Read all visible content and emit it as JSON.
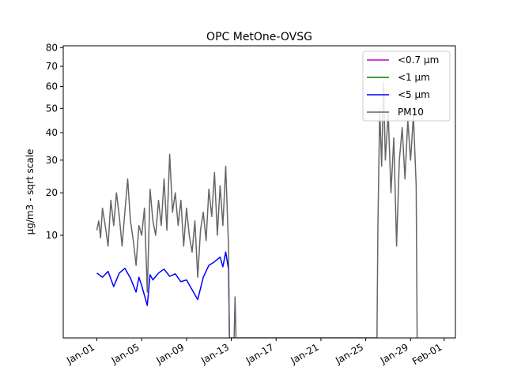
{
  "chart_data": {
    "type": "line",
    "title": "OPC MetOne-OVSG",
    "ylabel": "µg/m3 - sqrt scale",
    "xlabel": "",
    "y_scale": "sqrt",
    "ylim": [
      0,
      81
    ],
    "xlim": [
      "2022-12-29",
      "2023-02-02"
    ],
    "x_ticks": [
      "Jan-01",
      "Jan-05",
      "Jan-09",
      "Jan-13",
      "Jan-17",
      "Jan-21",
      "Jan-25",
      "Jan-29",
      "Feb-01"
    ],
    "x_tick_dates": [
      "2023-01-01",
      "2023-01-05",
      "2023-01-09",
      "2023-01-13",
      "2023-01-17",
      "2023-01-21",
      "2023-01-25",
      "2023-01-29",
      "2023-02-01"
    ],
    "y_ticks": [
      10,
      20,
      30,
      40,
      50,
      60,
      70,
      80
    ],
    "legend_position": "top-right",
    "grid": false,
    "series": [
      {
        "name": "<0.7 µm",
        "color": "#bf00bf",
        "visible_in_plot": false,
        "points": []
      },
      {
        "name": "<1 µm",
        "color": "#008000",
        "visible_in_plot": false,
        "points": []
      },
      {
        "name": "<5 µm",
        "color": "#0000ff",
        "points": [
          [
            "2023-01-01T00:00",
            4.0
          ],
          [
            "2023-01-01T12:00",
            3.5
          ],
          [
            "2023-01-02T00:00",
            4.2
          ],
          [
            "2023-01-02T12:00",
            2.5
          ],
          [
            "2023-01-03T00:00",
            4.0
          ],
          [
            "2023-01-03T12:00",
            4.6
          ],
          [
            "2023-01-04T00:00",
            3.4
          ],
          [
            "2023-01-04T12:00",
            2.0
          ],
          [
            "2023-01-04T18:00",
            3.5
          ],
          [
            "2023-01-05T00:00",
            2.6
          ],
          [
            "2023-01-05T12:00",
            1.0
          ],
          [
            "2023-01-05T18:00",
            3.8
          ],
          [
            "2023-01-06T00:00",
            3.2
          ],
          [
            "2023-01-06T12:00",
            4.0
          ],
          [
            "2023-01-07T00:00",
            4.5
          ],
          [
            "2023-01-07T12:00",
            3.6
          ],
          [
            "2023-01-08T00:00",
            3.9
          ],
          [
            "2023-01-08T12:00",
            3.0
          ],
          [
            "2023-01-09T00:00",
            3.2
          ],
          [
            "2023-01-09T12:00",
            2.2
          ],
          [
            "2023-01-10T00:00",
            1.4
          ],
          [
            "2023-01-10T12:00",
            3.5
          ],
          [
            "2023-01-11T00:00",
            5.0
          ],
          [
            "2023-01-11T12:00",
            5.5
          ],
          [
            "2023-01-12T00:00",
            6.2
          ],
          [
            "2023-01-12T06:00",
            4.8
          ],
          [
            "2023-01-12T12:00",
            7.0
          ],
          [
            "2023-01-12T18:00",
            4.5
          ],
          [
            "2023-01-12T20:00",
            0.0
          ]
        ]
      },
      {
        "name": "PM10",
        "color": "#666666",
        "points": [
          [
            "2023-01-01T00:00",
            11.0
          ],
          [
            "2023-01-01T04:00",
            13.0
          ],
          [
            "2023-01-01T08:00",
            9.5
          ],
          [
            "2023-01-01T12:00",
            16.0
          ],
          [
            "2023-01-01T18:00",
            12.0
          ],
          [
            "2023-01-02T00:00",
            8.0
          ],
          [
            "2023-01-02T06:00",
            18.0
          ],
          [
            "2023-01-02T12:00",
            12.0
          ],
          [
            "2023-01-02T18:00",
            20.0
          ],
          [
            "2023-01-03T00:00",
            14.0
          ],
          [
            "2023-01-03T06:00",
            8.0
          ],
          [
            "2023-01-03T12:00",
            15.0
          ],
          [
            "2023-01-03T18:00",
            24.0
          ],
          [
            "2023-01-04T00:00",
            13.0
          ],
          [
            "2023-01-04T06:00",
            9.0
          ],
          [
            "2023-01-04T12:00",
            5.0
          ],
          [
            "2023-01-04T18:00",
            12.0
          ],
          [
            "2023-01-05T00:00",
            10.0
          ],
          [
            "2023-01-05T06:00",
            16.0
          ],
          [
            "2023-01-05T12:00",
            2.0
          ],
          [
            "2023-01-05T18:00",
            21.0
          ],
          [
            "2023-01-06T00:00",
            13.0
          ],
          [
            "2023-01-06T06:00",
            10.0
          ],
          [
            "2023-01-06T12:00",
            18.0
          ],
          [
            "2023-01-06T18:00",
            12.0
          ],
          [
            "2023-01-07T00:00",
            24.0
          ],
          [
            "2023-01-07T06:00",
            11.0
          ],
          [
            "2023-01-07T12:00",
            32.0
          ],
          [
            "2023-01-07T18:00",
            15.0
          ],
          [
            "2023-01-08T00:00",
            20.0
          ],
          [
            "2023-01-08T06:00",
            12.0
          ],
          [
            "2023-01-08T12:00",
            18.0
          ],
          [
            "2023-01-08T18:00",
            8.0
          ],
          [
            "2023-01-09T00:00",
            16.0
          ],
          [
            "2023-01-09T06:00",
            10.0
          ],
          [
            "2023-01-09T12:00",
            7.0
          ],
          [
            "2023-01-09T18:00",
            13.0
          ],
          [
            "2023-01-10T00:00",
            3.5
          ],
          [
            "2023-01-10T06:00",
            11.0
          ],
          [
            "2023-01-10T12:00",
            15.0
          ],
          [
            "2023-01-10T18:00",
            9.0
          ],
          [
            "2023-01-11T00:00",
            21.0
          ],
          [
            "2023-01-11T06:00",
            14.0
          ],
          [
            "2023-01-11T12:00",
            26.0
          ],
          [
            "2023-01-11T18:00",
            10.0
          ],
          [
            "2023-01-12T00:00",
            22.0
          ],
          [
            "2023-01-12T06:00",
            12.0
          ],
          [
            "2023-01-12T12:00",
            28.0
          ],
          [
            "2023-01-12T18:00",
            8.0
          ],
          [
            "2023-01-12T20:00",
            0.0
          ],
          [
            "2023-01-13T06:00",
            0.0
          ],
          [
            "2023-01-13T08:00",
            1.6
          ],
          [
            "2023-01-13T10:00",
            0.0
          ],
          [
            "2023-01-26T00:00",
            0.0
          ],
          [
            "2023-01-26T02:00",
            12.0
          ],
          [
            "2023-01-26T06:00",
            50.0
          ],
          [
            "2023-01-26T10:00",
            28.0
          ],
          [
            "2023-01-26T14:00",
            62.0
          ],
          [
            "2023-01-26T18:00",
            30.0
          ],
          [
            "2023-01-27T00:00",
            48.0
          ],
          [
            "2023-01-27T06:00",
            20.0
          ],
          [
            "2023-01-27T12:00",
            38.0
          ],
          [
            "2023-01-27T18:00",
            8.0
          ],
          [
            "2023-01-28T00:00",
            30.0
          ],
          [
            "2023-01-28T06:00",
            42.0
          ],
          [
            "2023-01-28T12:00",
            24.0
          ],
          [
            "2023-01-28T18:00",
            45.0
          ],
          [
            "2023-01-29T00:00",
            30.0
          ],
          [
            "2023-01-29T06:00",
            47.0
          ],
          [
            "2023-01-29T12:00",
            22.0
          ],
          [
            "2023-01-29T14:00",
            0.0
          ]
        ]
      }
    ]
  }
}
